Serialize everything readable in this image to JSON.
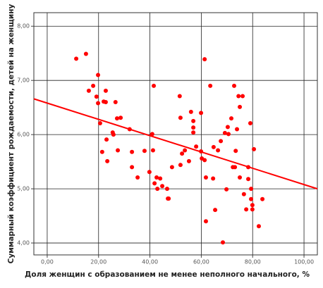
{
  "chart_data": {
    "type": "scatter",
    "x_label": "Доля женщин с образованием не менее неполного начального, %",
    "y_label": "Суммарный коэффициент рождаемости, детей на женщину",
    "color": "#ff0000",
    "x": [
      11.3,
      15.1,
      16.2,
      17.9,
      19.2,
      19.8,
      19.8,
      20.6,
      21.4,
      22.0,
      22.8,
      22.8,
      23.1,
      23.4,
      25.5,
      25.8,
      26.6,
      27.2,
      27.5,
      28.6,
      32.1,
      33.0,
      33.0,
      35.2,
      37.9,
      39.8,
      40.9,
      41.5,
      41.2,
      41.8,
      42.6,
      42.9,
      44.0,
      44.8,
      46.7,
      47.0,
      47.3,
      48.6,
      51.6,
      51.9,
      51.9,
      52.5,
      53.6,
      55.2,
      56.0,
      56.9,
      56.9,
      56.9,
      58.0,
      59.9,
      59.9,
      60.2,
      61.3,
      61.3,
      61.8,
      61.8,
      63.5,
      64.6,
      64.8,
      65.4,
      66.5,
      67.6,
      68.4,
      69.2,
      69.8,
      70.3,
      70.6,
      71.7,
      72.3,
      73.1,
      72.8,
      73.4,
      73.9,
      74.5,
      75.0,
      75.0,
      76.1,
      76.6,
      77.5,
      78.3,
      79.1,
      79.4,
      79.4,
      79.9,
      79.9,
      80.5,
      82.4,
      83.8,
      78.3
    ],
    "values": [
      7.4,
      7.49,
      6.81,
      6.9,
      6.7,
      7.1,
      6.58,
      6.21,
      5.68,
      6.61,
      6.81,
      6.6,
      5.91,
      5.51,
      6.04,
      6.0,
      6.6,
      6.3,
      5.71,
      6.31,
      6.1,
      5.68,
      5.4,
      5.21,
      5.7,
      5.31,
      6.01,
      6.9,
      5.71,
      5.1,
      5.21,
      5.0,
      5.19,
      5.05,
      5.0,
      4.82,
      4.82,
      5.4,
      6.71,
      6.31,
      5.44,
      5.65,
      5.71,
      5.51,
      6.42,
      6.25,
      6.13,
      6.04,
      5.78,
      6.4,
      5.69,
      5.56,
      7.39,
      5.53,
      5.21,
      4.4,
      6.9,
      5.19,
      5.77,
      4.61,
      5.71,
      5.88,
      4.01,
      6.03,
      4.99,
      6.14,
      6.01,
      6.3,
      5.4,
      5.4,
      6.9,
      5.7,
      6.1,
      6.71,
      6.51,
      5.21,
      6.71,
      4.9,
      4.62,
      5.4,
      6.21,
      5.0,
      4.81,
      4.62,
      4.7,
      5.73,
      4.31,
      4.81,
      5.18
    ],
    "trend_line": {
      "color": "#ff0000",
      "x": [
        -5.2,
        105.2
      ],
      "values": [
        6.66,
        5.0
      ]
    },
    "xlim": [
      -5.2,
      105.2
    ],
    "ylim": [
      3.78,
      8.25
    ],
    "xticks": [
      {
        "value": 0,
        "label": "0,00"
      },
      {
        "value": 20,
        "label": "20,00"
      },
      {
        "value": 40,
        "label": "40,00"
      },
      {
        "value": 60,
        "label": "60,00"
      },
      {
        "value": 80,
        "label": "80,00"
      },
      {
        "value": 100,
        "label": "100,00"
      }
    ],
    "yticks": [
      {
        "value": 4,
        "label": "4,00"
      },
      {
        "value": 5,
        "label": "5,00"
      },
      {
        "value": 6,
        "label": "6,00"
      },
      {
        "value": 7,
        "label": "7,00"
      },
      {
        "value": 8,
        "label": "8,00"
      }
    ],
    "grid": true
  }
}
